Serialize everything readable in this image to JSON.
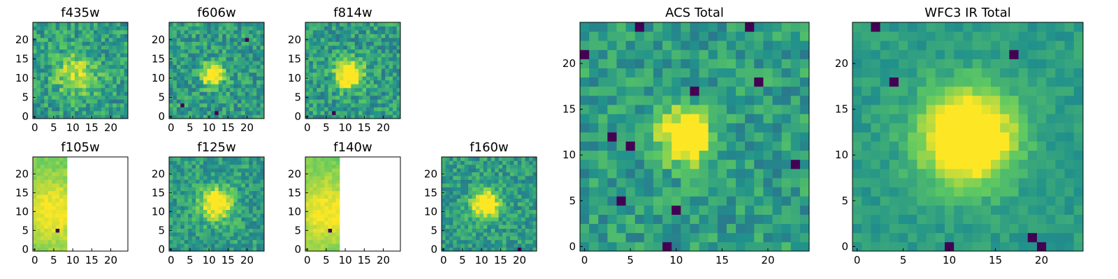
{
  "colormap": [
    "#440154",
    "#3b528b",
    "#21918c",
    "#5ec962",
    "#fde725"
  ],
  "chart_data": [
    {
      "type": "heatmap",
      "title": "f435w",
      "grid_size": 25,
      "xticks": [
        0,
        5,
        10,
        15,
        20
      ],
      "yticks": [
        0,
        5,
        10,
        15,
        20
      ],
      "covered_cols": 25,
      "peak": [
        11,
        11
      ],
      "peak_strength": 0.35,
      "sigma": 4.0,
      "noise": 0.35,
      "seed": 11,
      "dark_pixels": []
    },
    {
      "type": "heatmap",
      "title": "f606w",
      "grid_size": 25,
      "xticks": [
        0,
        5,
        10,
        15,
        20
      ],
      "yticks": [
        0,
        5,
        10,
        15,
        20
      ],
      "covered_cols": 25,
      "peak": [
        11,
        11
      ],
      "peak_strength": 0.7,
      "sigma": 2.0,
      "noise": 0.35,
      "seed": 23,
      "dark_pixels": [
        [
          3,
          3
        ],
        [
          20,
          20
        ],
        [
          12,
          1
        ]
      ]
    },
    {
      "type": "heatmap",
      "title": "f814w",
      "grid_size": 25,
      "xticks": [
        0,
        5,
        10,
        15,
        20
      ],
      "yticks": [
        0,
        5,
        10,
        15,
        20
      ],
      "covered_cols": 25,
      "peak": [
        11,
        11
      ],
      "peak_strength": 0.7,
      "sigma": 2.5,
      "noise": 0.35,
      "seed": 37,
      "dark_pixels": [
        [
          7,
          1
        ]
      ]
    },
    {
      "type": "heatmap",
      "title": "f105w",
      "grid_size": 25,
      "xticks": [
        0,
        5,
        10,
        15,
        20
      ],
      "yticks": [
        0,
        5,
        10,
        15,
        20
      ],
      "covered_cols": 9,
      "peak": [
        5,
        10
      ],
      "peak_strength": 0.4,
      "sigma": 6.0,
      "noise": 0.1,
      "seed": 41,
      "dark_pixels": [
        [
          6,
          5
        ]
      ]
    },
    {
      "type": "heatmap",
      "title": "f125w",
      "grid_size": 25,
      "xticks": [
        0,
        5,
        10,
        15,
        20
      ],
      "yticks": [
        0,
        5,
        10,
        15,
        20
      ],
      "covered_cols": 25,
      "peak": [
        12,
        12
      ],
      "peak_strength": 0.6,
      "sigma": 3.0,
      "noise": 0.3,
      "seed": 53,
      "dark_pixels": []
    },
    {
      "type": "heatmap",
      "title": "f140w",
      "grid_size": 25,
      "xticks": [
        0,
        5,
        10,
        15,
        20
      ],
      "yticks": [
        0,
        5,
        10,
        15,
        20
      ],
      "covered_cols": 9,
      "peak": [
        5,
        10
      ],
      "peak_strength": 0.4,
      "sigma": 6.0,
      "noise": 0.1,
      "seed": 59,
      "dark_pixels": [
        [
          6,
          5
        ]
      ]
    },
    {
      "type": "heatmap",
      "title": "f160w",
      "grid_size": 25,
      "xticks": [
        0,
        5,
        10,
        15,
        20
      ],
      "yticks": [
        0,
        5,
        10,
        15,
        20
      ],
      "covered_cols": 25,
      "peak": [
        11,
        12
      ],
      "peak_strength": 0.7,
      "sigma": 2.5,
      "noise": 0.3,
      "seed": 67,
      "dark_pixels": [
        [
          20,
          0
        ]
      ]
    },
    {
      "type": "heatmap",
      "title": "ACS Total",
      "grid_size": 25,
      "xticks": [
        0,
        5,
        10,
        15,
        20
      ],
      "yticks": [
        0,
        5,
        10,
        15,
        20
      ],
      "covered_cols": 25,
      "peak": [
        11,
        12
      ],
      "peak_strength": 0.75,
      "sigma": 2.0,
      "noise": 0.3,
      "seed": 71,
      "dark_pixels": [
        [
          6,
          24
        ],
        [
          18,
          24
        ],
        [
          0,
          21
        ],
        [
          12,
          17
        ],
        [
          19,
          18
        ],
        [
          3,
          12
        ],
        [
          5,
          11
        ],
        [
          10,
          4
        ],
        [
          4,
          5
        ],
        [
          9,
          0
        ],
        [
          23,
          9
        ]
      ]
    },
    {
      "type": "heatmap",
      "title": "WFC3 IR Total",
      "grid_size": 25,
      "xticks": [
        0,
        5,
        10,
        15,
        20
      ],
      "yticks": [
        0,
        5,
        10,
        15,
        20
      ],
      "covered_cols": 25,
      "peak": [
        12,
        12
      ],
      "peak_strength": 0.8,
      "sigma": 3.5,
      "noise": 0.15,
      "seed": 83,
      "dark_pixels": [
        [
          2,
          24
        ],
        [
          17,
          21
        ],
        [
          4,
          18
        ],
        [
          19,
          1
        ],
        [
          20,
          0
        ],
        [
          10,
          0
        ]
      ]
    }
  ]
}
